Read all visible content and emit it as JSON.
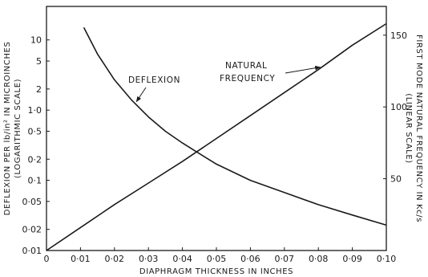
{
  "chart_data": {
    "type": "line",
    "xlabel": "DIAPHRAGM THICKNESS IN INCHES",
    "ylabel_left": "DEFLEXION PER lb/in² IN MICROINCHES",
    "ylabel_left_sub": "(LOGARITHMIC SCALE)",
    "ylabel_right": "FIRST MODE NATURAL FREQUENCY IN Kc/s",
    "ylabel_right_sub": "(LINEAR SCALE)",
    "xlim": [
      0,
      0.1
    ],
    "x_ticks": [
      {
        "value": 0,
        "label": "0"
      },
      {
        "value": 0.01,
        "label": "0·01"
      },
      {
        "value": 0.02,
        "label": "0·02"
      },
      {
        "value": 0.03,
        "label": "0·03"
      },
      {
        "value": 0.04,
        "label": "0·04"
      },
      {
        "value": 0.05,
        "label": "0·05"
      },
      {
        "value": 0.06,
        "label": "0·06"
      },
      {
        "value": 0.07,
        "label": "0·07"
      },
      {
        "value": 0.08,
        "label": "0·08"
      },
      {
        "value": 0.09,
        "label": "0·09"
      },
      {
        "value": 0.1,
        "label": "0·10"
      }
    ],
    "left_axis": {
      "scale": "log",
      "ylim": [
        0.01,
        30
      ],
      "ticks": [
        {
          "value": 0.01,
          "label": "0·01"
        },
        {
          "value": 0.02,
          "label": "0·02"
        },
        {
          "value": 0.05,
          "label": "0·05"
        },
        {
          "value": 0.1,
          "label": "0·1"
        },
        {
          "value": 0.2,
          "label": "0·2"
        },
        {
          "value": 0.5,
          "label": "0·5"
        },
        {
          "value": 1,
          "label": "1·0"
        },
        {
          "value": 2,
          "label": "2"
        },
        {
          "value": 5,
          "label": "5"
        },
        {
          "value": 10,
          "label": "10"
        }
      ]
    },
    "right_axis": {
      "scale": "linear",
      "ylim": [
        0,
        170
      ],
      "ticks": [
        {
          "value": 50,
          "label": "50"
        },
        {
          "value": 100,
          "label": "100"
        },
        {
          "value": 150,
          "label": "150"
        }
      ]
    },
    "series": [
      {
        "name": "DEFLEXION",
        "axis": "left",
        "x": [
          0.011,
          0.015,
          0.02,
          0.025,
          0.03,
          0.035,
          0.04,
          0.045,
          0.05,
          0.06,
          0.07,
          0.08,
          0.09,
          0.1
        ],
        "values": [
          15,
          6.3,
          2.7,
          1.4,
          0.8,
          0.5,
          0.34,
          0.24,
          0.17,
          0.1,
          0.067,
          0.045,
          0.032,
          0.023
        ]
      },
      {
        "name": "NATURAL FREQUENCY",
        "axis": "right",
        "x": [
          0,
          0.01,
          0.02,
          0.03,
          0.04,
          0.05,
          0.06,
          0.07,
          0.08,
          0.09,
          0.1
        ],
        "values": [
          0,
          16,
          32,
          47,
          62,
          78,
          94,
          110,
          126,
          143,
          158
        ]
      }
    ],
    "annotations": [
      {
        "lines": [
          "DEFLEXION"
        ],
        "target_series": "DEFLEXION"
      },
      {
        "lines": [
          "NATURAL",
          "FREQUENCY"
        ],
        "target_series": "NATURAL FREQUENCY"
      }
    ],
    "grid": false
  }
}
